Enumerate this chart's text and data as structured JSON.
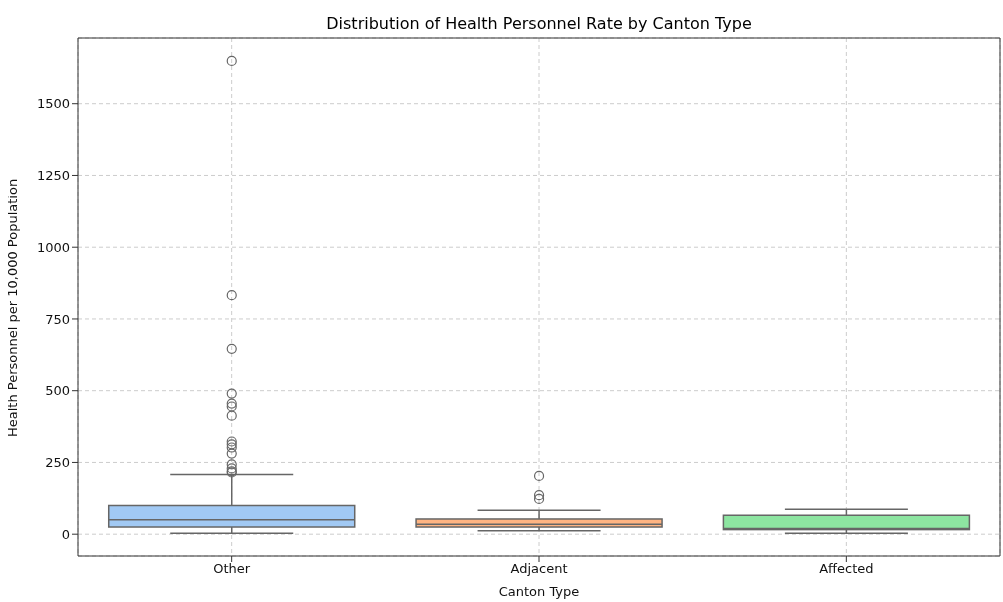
{
  "chart_data": {
    "type": "box",
    "title": "Distribution of Health Personnel Rate by Canton Type",
    "xlabel": "Canton Type",
    "ylabel": "Health Personnel per 10,000 Population",
    "categories": [
      "Other",
      "Adjacent",
      "Affected"
    ],
    "colors": [
      "#a1c9f4",
      "#ffb482",
      "#8de5a1"
    ],
    "boxes": [
      {
        "low": 3,
        "q1": 25,
        "median": 50,
        "q3": 100,
        "high": 208,
        "outliers": [
          1649,
          833,
          646,
          490,
          455,
          445,
          413,
          323,
          313,
          302,
          281,
          243,
          229,
          219,
          215
        ]
      },
      {
        "low": 12,
        "q1": 25,
        "median": 35,
        "q3": 53,
        "high": 83,
        "outliers": [
          203,
          136,
          123
        ]
      },
      {
        "low": 3,
        "q1": 16,
        "median": 20,
        "q3": 66,
        "high": 87
      }
    ],
    "ylim": [
      -76,
      1729
    ],
    "yticks": [
      0,
      250,
      500,
      750,
      1000,
      1250,
      1500
    ],
    "grid": true
  }
}
